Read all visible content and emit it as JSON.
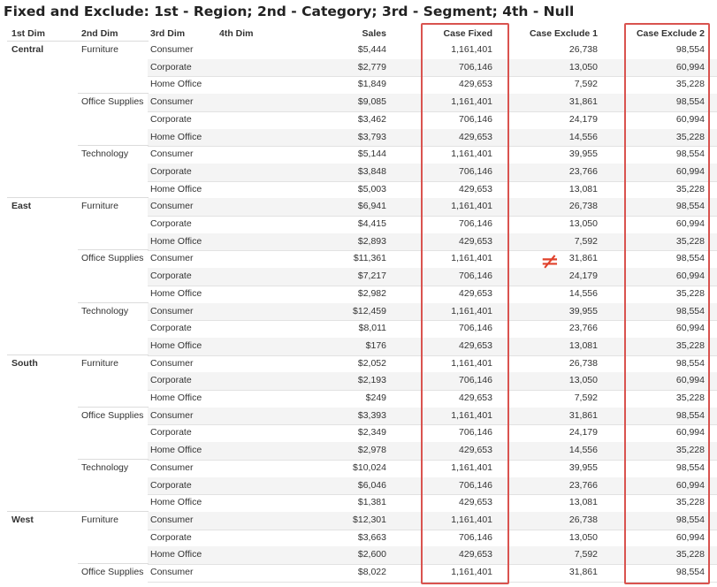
{
  "title": "Fixed and Exclude: 1st - Region; 2nd - Category; 3rd - Segment; 4th - Null",
  "headers": {
    "dim1": "1st Dim",
    "dim2": "2nd Dim",
    "dim3": "3rd Dim",
    "dim4": "4th Dim",
    "sales": "Sales",
    "case_fixed": "Case Fixed",
    "case_exclude_1": "Case Exclude 1",
    "case_exclude_2": "Case Exclude 2"
  },
  "annotation": {
    "symbol": "≠",
    "color": "#e0412b"
  },
  "accent_color": "#d9534f",
  "rows": [
    {
      "region": "Central",
      "category": "Furniture",
      "segment": "Consumer",
      "sales": "$5,444",
      "fixed": "1,161,401",
      "ex1": "26,738",
      "ex2": "98,554"
    },
    {
      "region": "",
      "category": "",
      "segment": "Corporate",
      "sales": "$2,779",
      "fixed": "706,146",
      "ex1": "13,050",
      "ex2": "60,994"
    },
    {
      "region": "",
      "category": "",
      "segment": "Home Office",
      "sales": "$1,849",
      "fixed": "429,653",
      "ex1": "7,592",
      "ex2": "35,228"
    },
    {
      "region": "",
      "category": "Office Supplies",
      "segment": "Consumer",
      "sales": "$9,085",
      "fixed": "1,161,401",
      "ex1": "31,861",
      "ex2": "98,554"
    },
    {
      "region": "",
      "category": "",
      "segment": "Corporate",
      "sales": "$3,462",
      "fixed": "706,146",
      "ex1": "24,179",
      "ex2": "60,994"
    },
    {
      "region": "",
      "category": "",
      "segment": "Home Office",
      "sales": "$3,793",
      "fixed": "429,653",
      "ex1": "14,556",
      "ex2": "35,228"
    },
    {
      "region": "",
      "category": "Technology",
      "segment": "Consumer",
      "sales": "$5,144",
      "fixed": "1,161,401",
      "ex1": "39,955",
      "ex2": "98,554"
    },
    {
      "region": "",
      "category": "",
      "segment": "Corporate",
      "sales": "$3,848",
      "fixed": "706,146",
      "ex1": "23,766",
      "ex2": "60,994"
    },
    {
      "region": "",
      "category": "",
      "segment": "Home Office",
      "sales": "$5,003",
      "fixed": "429,653",
      "ex1": "13,081",
      "ex2": "35,228"
    },
    {
      "region": "East",
      "category": "Furniture",
      "segment": "Consumer",
      "sales": "$6,941",
      "fixed": "1,161,401",
      "ex1": "26,738",
      "ex2": "98,554"
    },
    {
      "region": "",
      "category": "",
      "segment": "Corporate",
      "sales": "$4,415",
      "fixed": "706,146",
      "ex1": "13,050",
      "ex2": "60,994"
    },
    {
      "region": "",
      "category": "",
      "segment": "Home Office",
      "sales": "$2,893",
      "fixed": "429,653",
      "ex1": "7,592",
      "ex2": "35,228"
    },
    {
      "region": "",
      "category": "Office Supplies",
      "segment": "Consumer",
      "sales": "$11,361",
      "fixed": "1,161,401",
      "ex1": "31,861",
      "ex2": "98,554"
    },
    {
      "region": "",
      "category": "",
      "segment": "Corporate",
      "sales": "$7,217",
      "fixed": "706,146",
      "ex1": "24,179",
      "ex2": "60,994"
    },
    {
      "region": "",
      "category": "",
      "segment": "Home Office",
      "sales": "$2,982",
      "fixed": "429,653",
      "ex1": "14,556",
      "ex2": "35,228"
    },
    {
      "region": "",
      "category": "Technology",
      "segment": "Consumer",
      "sales": "$12,459",
      "fixed": "1,161,401",
      "ex1": "39,955",
      "ex2": "98,554"
    },
    {
      "region": "",
      "category": "",
      "segment": "Corporate",
      "sales": "$8,011",
      "fixed": "706,146",
      "ex1": "23,766",
      "ex2": "60,994"
    },
    {
      "region": "",
      "category": "",
      "segment": "Home Office",
      "sales": "$176",
      "fixed": "429,653",
      "ex1": "13,081",
      "ex2": "35,228"
    },
    {
      "region": "South",
      "category": "Furniture",
      "segment": "Consumer",
      "sales": "$2,052",
      "fixed": "1,161,401",
      "ex1": "26,738",
      "ex2": "98,554"
    },
    {
      "region": "",
      "category": "",
      "segment": "Corporate",
      "sales": "$2,193",
      "fixed": "706,146",
      "ex1": "13,050",
      "ex2": "60,994"
    },
    {
      "region": "",
      "category": "",
      "segment": "Home Office",
      "sales": "$249",
      "fixed": "429,653",
      "ex1": "7,592",
      "ex2": "35,228"
    },
    {
      "region": "",
      "category": "Office Supplies",
      "segment": "Consumer",
      "sales": "$3,393",
      "fixed": "1,161,401",
      "ex1": "31,861",
      "ex2": "98,554"
    },
    {
      "region": "",
      "category": "",
      "segment": "Corporate",
      "sales": "$2,349",
      "fixed": "706,146",
      "ex1": "24,179",
      "ex2": "60,994"
    },
    {
      "region": "",
      "category": "",
      "segment": "Home Office",
      "sales": "$2,978",
      "fixed": "429,653",
      "ex1": "14,556",
      "ex2": "35,228"
    },
    {
      "region": "",
      "category": "Technology",
      "segment": "Consumer",
      "sales": "$10,024",
      "fixed": "1,161,401",
      "ex1": "39,955",
      "ex2": "98,554"
    },
    {
      "region": "",
      "category": "",
      "segment": "Corporate",
      "sales": "$6,046",
      "fixed": "706,146",
      "ex1": "23,766",
      "ex2": "60,994"
    },
    {
      "region": "",
      "category": "",
      "segment": "Home Office",
      "sales": "$1,381",
      "fixed": "429,653",
      "ex1": "13,081",
      "ex2": "35,228"
    },
    {
      "region": "West",
      "category": "Furniture",
      "segment": "Consumer",
      "sales": "$12,301",
      "fixed": "1,161,401",
      "ex1": "26,738",
      "ex2": "98,554"
    },
    {
      "region": "",
      "category": "",
      "segment": "Corporate",
      "sales": "$3,663",
      "fixed": "706,146",
      "ex1": "13,050",
      "ex2": "60,994"
    },
    {
      "region": "",
      "category": "",
      "segment": "Home Office",
      "sales": "$2,600",
      "fixed": "429,653",
      "ex1": "7,592",
      "ex2": "35,228"
    },
    {
      "region": "",
      "category": "Office Supplies",
      "segment": "Consumer",
      "sales": "$8,022",
      "fixed": "1,161,401",
      "ex1": "31,861",
      "ex2": "98,554"
    }
  ]
}
